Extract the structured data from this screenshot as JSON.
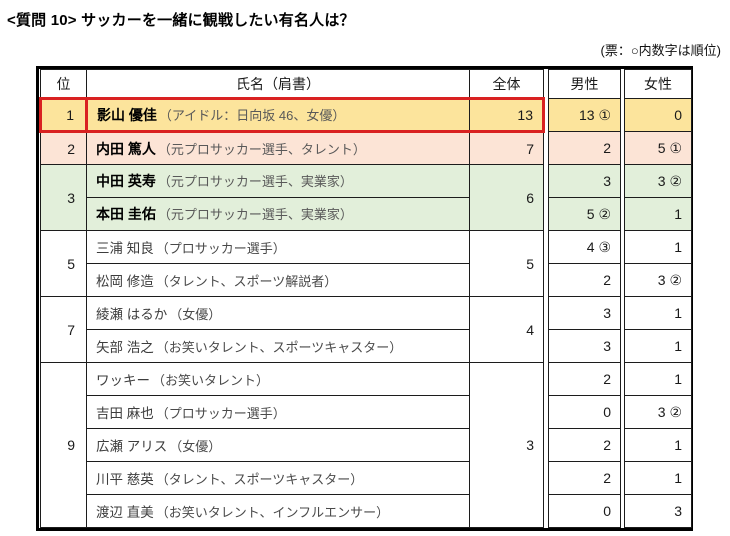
{
  "page": {
    "title": "<質問 10>  サッカーを一緒に観戦したい有名人は？",
    "note": "(票：○内数字は順位)"
  },
  "colors": {
    "yellow": "#fce49c",
    "pink": "#fce4d6",
    "green": "#e2efda",
    "white": "#ffffff",
    "red_box": "#d92121"
  },
  "table": {
    "headers": {
      "rank": "位",
      "name": "氏名（肩書）",
      "total": "全体",
      "male": "男性",
      "female": "女性"
    },
    "groups": [
      {
        "rank": "1",
        "total": "13",
        "color": "yellow",
        "red_box": true,
        "rows": [
          {
            "name": "影山 優佳",
            "title": "（アイドル：日向坂 46、女優）",
            "bold": true,
            "male": "13 ①",
            "female": "0"
          }
        ]
      },
      {
        "rank": "2",
        "total": "7",
        "color": "pink",
        "red_box": false,
        "rows": [
          {
            "name": "内田 篤人",
            "title": "（元プロサッカー選手、タレント）",
            "bold": true,
            "male": "2",
            "female": "5 ①"
          }
        ]
      },
      {
        "rank": "3",
        "total": "6",
        "color": "green",
        "red_box": false,
        "rows": [
          {
            "name": "中田 英寿",
            "title": "（元プロサッカー選手、実業家）",
            "bold": true,
            "male": "3",
            "female": "3 ②"
          },
          {
            "name": "本田 圭佑",
            "title": "（元プロサッカー選手、実業家）",
            "bold": true,
            "male": "5 ②",
            "female": "1"
          }
        ]
      },
      {
        "rank": "5",
        "total": "5",
        "color": "white",
        "red_box": false,
        "rows": [
          {
            "name": "三浦 知良",
            "title": "（プロサッカー選手）",
            "bold": false,
            "male": "4 ③",
            "female": "1"
          },
          {
            "name": "松岡 修造",
            "title": "（タレント、スポーツ解説者）",
            "bold": false,
            "male": "2",
            "female": "3 ②"
          }
        ]
      },
      {
        "rank": "7",
        "total": "4",
        "color": "white",
        "red_box": false,
        "rows": [
          {
            "name": "綾瀬 はるか",
            "title": "（女優）",
            "bold": false,
            "male": "3",
            "female": "1"
          },
          {
            "name": "矢部 浩之",
            "title": "（お笑いタレント、スポーツキャスター）",
            "bold": false,
            "male": "3",
            "female": "1"
          }
        ]
      },
      {
        "rank": "9",
        "total": "3",
        "color": "white",
        "red_box": false,
        "rows": [
          {
            "name": "ワッキー",
            "title": "（お笑いタレント）",
            "bold": false,
            "male": "2",
            "female": "1"
          },
          {
            "name": "吉田 麻也",
            "title": "（プロサッカー選手）",
            "bold": false,
            "male": "0",
            "female": "3 ②"
          },
          {
            "name": "広瀬 アリス",
            "title": "（女優）",
            "bold": false,
            "male": "2",
            "female": "1"
          },
          {
            "name": "川平 慈英",
            "title": "（タレント、スポーツキャスター）",
            "bold": false,
            "male": "2",
            "female": "1"
          },
          {
            "name": "渡辺 直美",
            "title": "（お笑いタレント、インフルエンサー）",
            "bold": false,
            "male": "0",
            "female": "3"
          }
        ]
      }
    ]
  }
}
